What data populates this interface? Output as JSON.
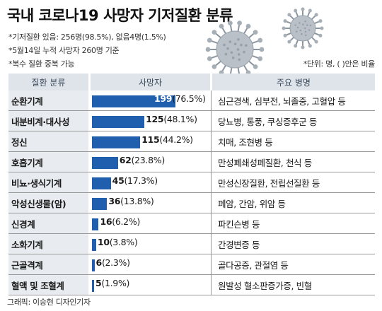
{
  "title": "국내 코로나19 사망자 기저질환 분류",
  "notes": [
    "*기저질환 있음: 256명(98.5%), 없음4명(1.5%)",
    "*5월14일 누적 사망자 260명 기준",
    "*복수 질환 중복 가능"
  ],
  "unit_note": "*단위: 명, ( )안은 비율",
  "headers": {
    "category": "질환 분류",
    "deaths": "사망자",
    "diseases": "주요 병명"
  },
  "colors": {
    "bar": "#1f5fae",
    "header_bg": "#dfe4ea",
    "category_bg": "#e8ecf0"
  },
  "icons": [
    "virus-icon"
  ],
  "chart_data": {
    "type": "bar",
    "orientation": "horizontal",
    "title": "국내 코로나19 사망자 기저질환 분류",
    "categories": [
      "순환기계",
      "내분비계·대사성",
      "정신",
      "호흡기계",
      "비뇨·생식기계",
      "악성신생물(암)",
      "신경계",
      "소화기계",
      "근골격계",
      "혈액 및 조혈계"
    ],
    "values": [
      199,
      125,
      115,
      62,
      45,
      36,
      16,
      10,
      6,
      5
    ],
    "percents": [
      "76.5%",
      "48.1%",
      "44.2%",
      "23.8%",
      "17.3%",
      "13.8%",
      "6.2%",
      "3.8%",
      "2.3%",
      "1.9%"
    ],
    "diseases": [
      "심근경색, 심부전, 뇌졸중, 고혈압 등",
      "당뇨병, 통풍, 쿠싱증후군 등",
      "치매, 조현병 등",
      "만성폐쇄성폐질환, 천식 등",
      "만성신장질환, 전립선질환 등",
      "폐암, 간암, 위암 등",
      "파킨슨병 등",
      "간경변증 등",
      "골다공증, 관절염 등",
      "원발성 혈소판증가증, 빈혈"
    ],
    "xlim": [
      0,
      199
    ]
  },
  "credit": "그래픽: 이승현 디자인기자"
}
